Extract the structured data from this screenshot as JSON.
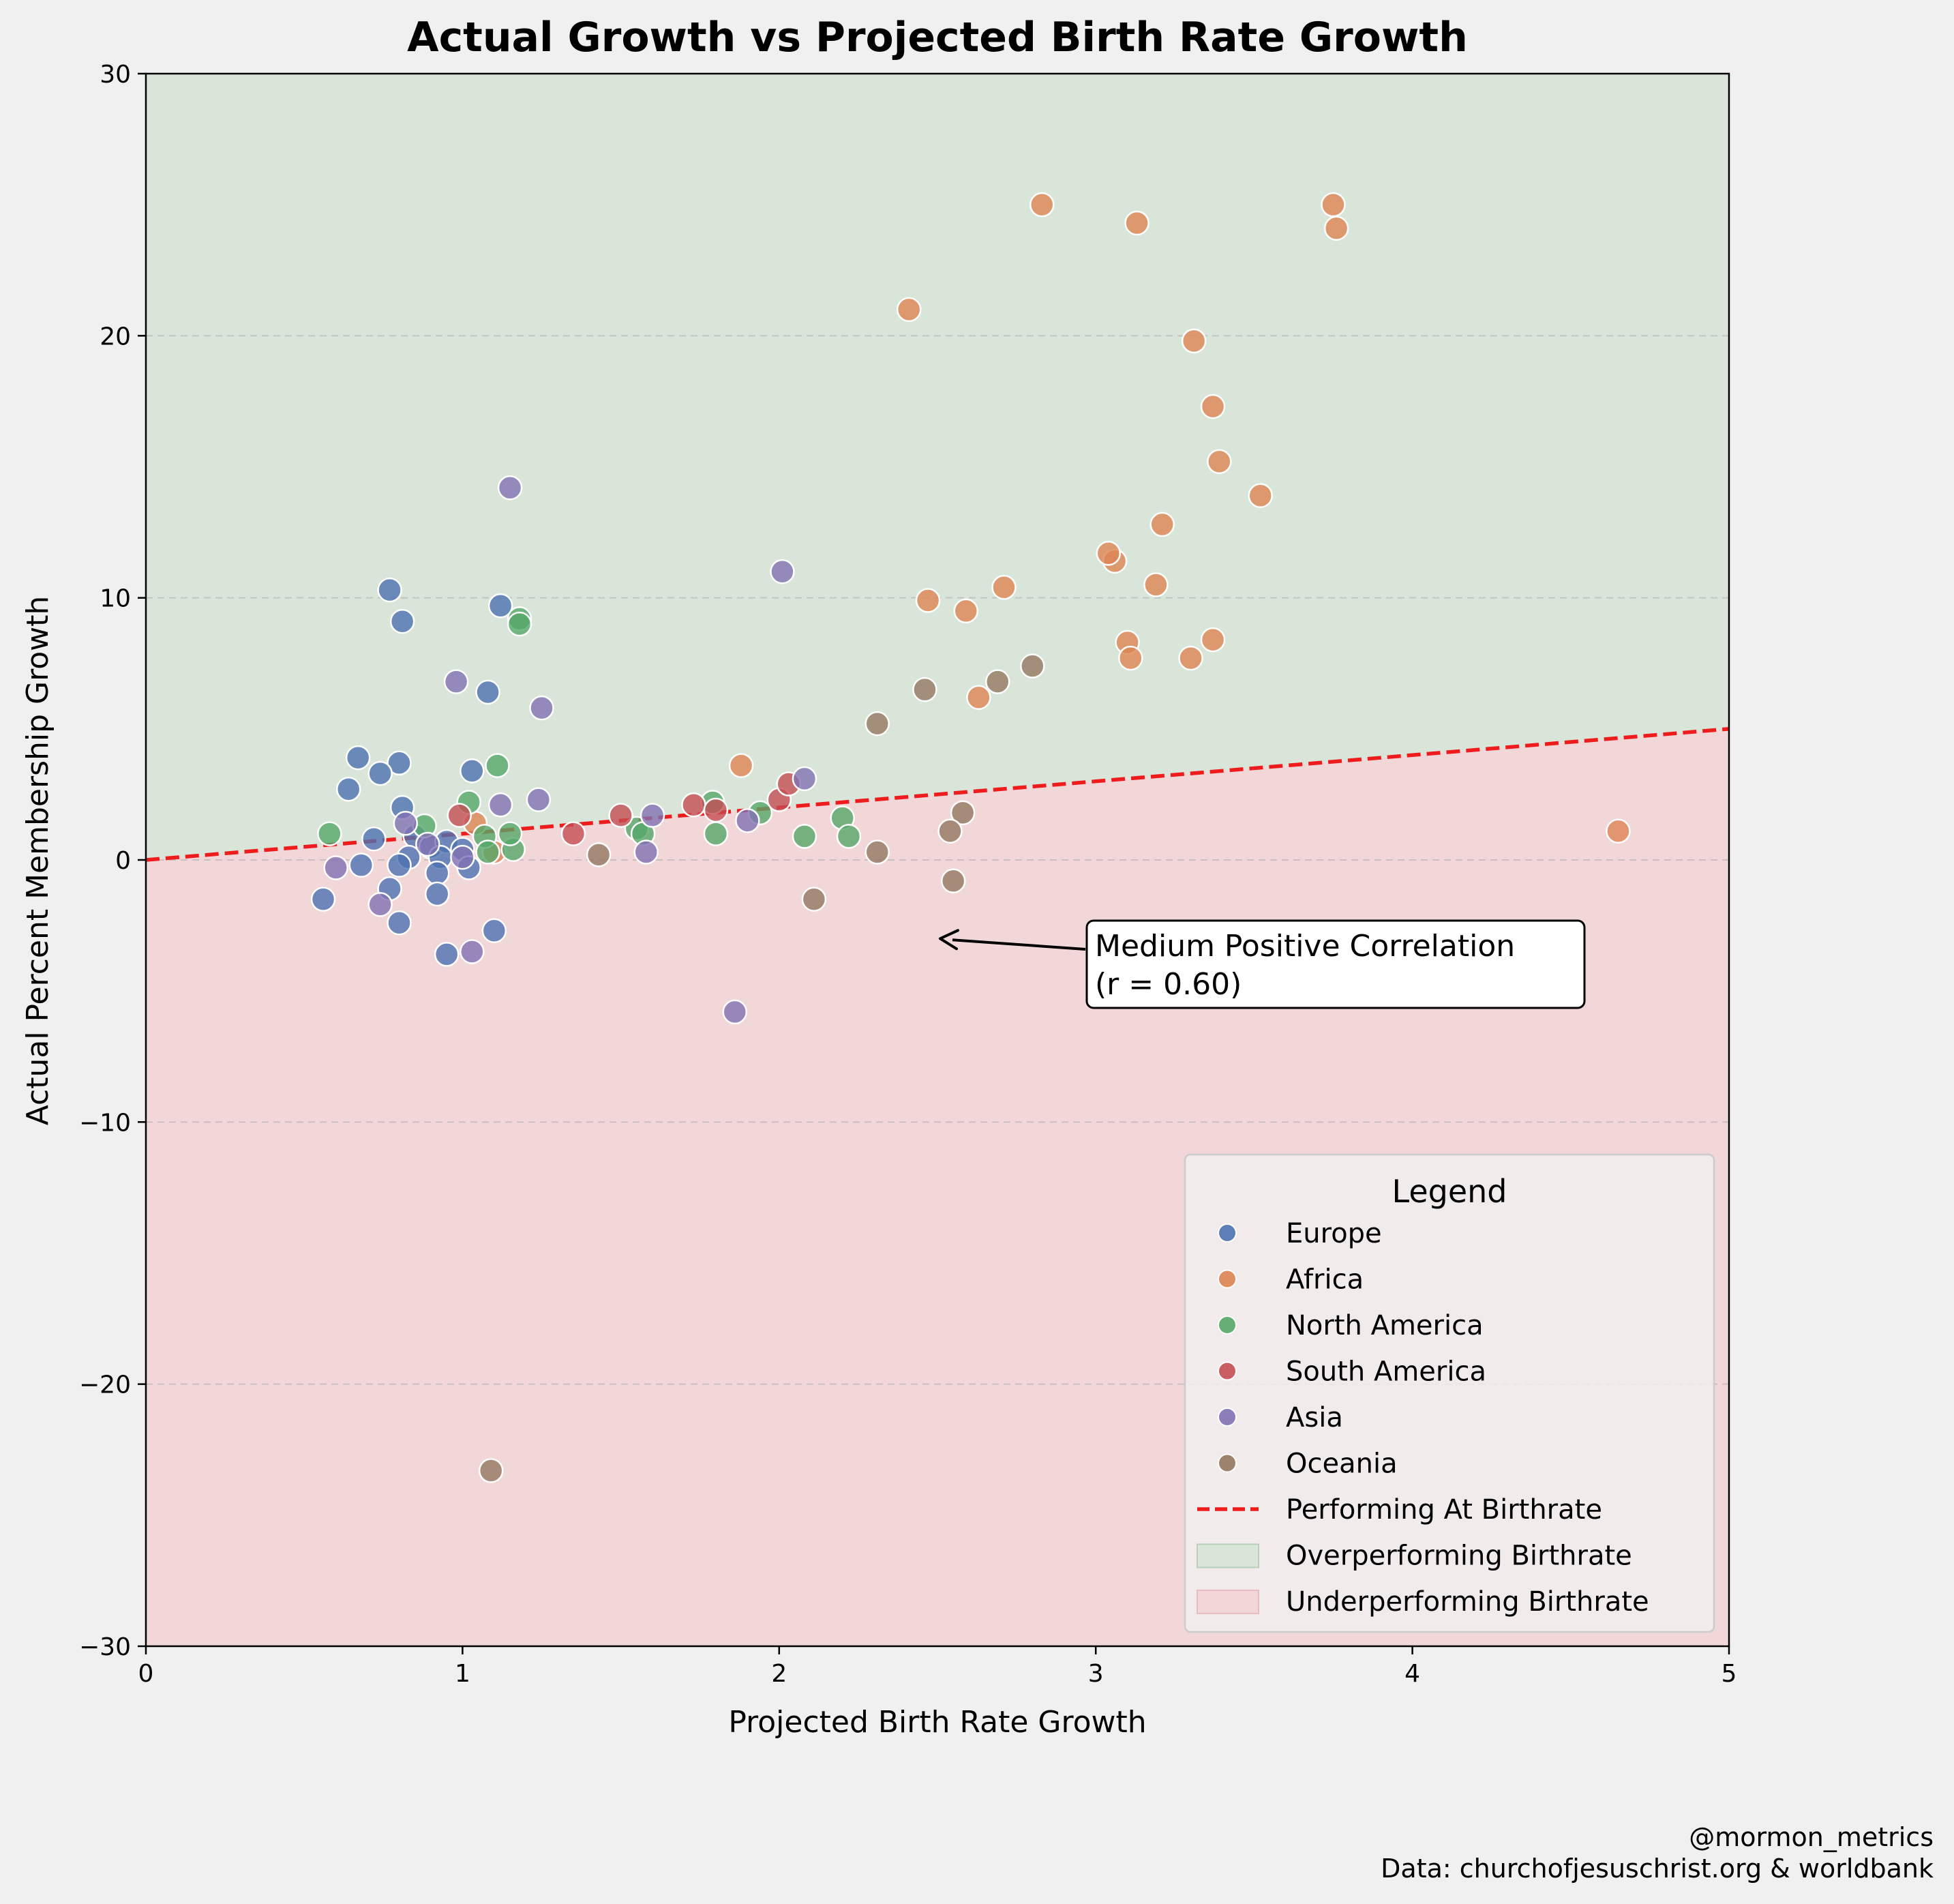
{
  "chart_data": {
    "type": "scatter",
    "title": "Actual Growth vs Projected Birth Rate Growth",
    "xlabel": "Projected Birth Rate Growth",
    "ylabel": "Actual Percent Membership Growth",
    "xlim": [
      0,
      5
    ],
    "ylim": [
      -30,
      30
    ],
    "xticks": [
      0,
      1,
      2,
      3,
      4,
      5
    ],
    "yticks": [
      -30,
      -20,
      -10,
      0,
      10,
      20,
      30
    ],
    "xtick_labels": [
      "0",
      "1",
      "2",
      "3",
      "4",
      "5"
    ],
    "ytick_labels": [
      "−30",
      "−20",
      "−10",
      "0",
      "10",
      "20",
      "30"
    ],
    "grid": "y-dashed",
    "reference_line": {
      "label": "Performing At Birthrate",
      "x": [
        0,
        5
      ],
      "y": [
        0,
        5
      ],
      "color": "#ee1c1c"
    },
    "regions": [
      {
        "label": "Overperforming Birthrate",
        "color": "#d9e5d9"
      },
      {
        "label": "Underperforming Birthrate",
        "color": "#f2d7d9"
      }
    ],
    "annotation": {
      "line1": "Medium Positive Correlation",
      "line2": "(r = 0.60)",
      "arrow_target": [
        2.5,
        -3.0
      ],
      "text_anchor": [
        3.0,
        -4.0
      ]
    },
    "legend": {
      "title": "Legend",
      "position": "lower-right"
    },
    "series": [
      {
        "name": "Europe",
        "color": "#4c72b0",
        "points": [
          [
            0.77,
            10.3
          ],
          [
            0.81,
            9.1
          ],
          [
            1.12,
            9.7
          ],
          [
            1.08,
            6.4
          ],
          [
            0.67,
            3.9
          ],
          [
            0.8,
            3.7
          ],
          [
            0.74,
            3.3
          ],
          [
            0.64,
            2.7
          ],
          [
            1.03,
            3.4
          ],
          [
            0.81,
            2.0
          ],
          [
            0.72,
            0.8
          ],
          [
            0.85,
            0.9
          ],
          [
            0.9,
            0.5
          ],
          [
            0.95,
            0.7
          ],
          [
            1.0,
            0.4
          ],
          [
            0.83,
            0.1
          ],
          [
            0.93,
            0.1
          ],
          [
            0.68,
            -0.2
          ],
          [
            0.8,
            -0.2
          ],
          [
            0.92,
            -0.5
          ],
          [
            1.02,
            -0.3
          ],
          [
            0.56,
            -1.5
          ],
          [
            0.77,
            -1.1
          ],
          [
            0.92,
            -1.3
          ],
          [
            0.8,
            -2.4
          ],
          [
            1.1,
            -2.7
          ],
          [
            0.95,
            -3.6
          ]
        ]
      },
      {
        "name": "Africa",
        "color": "#dd8452",
        "points": [
          [
            2.83,
            25.0
          ],
          [
            3.75,
            25.0
          ],
          [
            3.13,
            24.3
          ],
          [
            3.76,
            24.1
          ],
          [
            2.41,
            21.0
          ],
          [
            3.31,
            19.8
          ],
          [
            3.37,
            17.3
          ],
          [
            3.39,
            15.2
          ],
          [
            3.52,
            13.9
          ],
          [
            3.21,
            12.8
          ],
          [
            3.06,
            11.4
          ],
          [
            3.04,
            11.7
          ],
          [
            3.19,
            10.5
          ],
          [
            2.71,
            10.4
          ],
          [
            2.47,
            9.9
          ],
          [
            2.59,
            9.5
          ],
          [
            3.1,
            8.3
          ],
          [
            3.37,
            8.4
          ],
          [
            3.11,
            7.7
          ],
          [
            3.3,
            7.7
          ],
          [
            2.63,
            6.2
          ],
          [
            1.88,
            3.6
          ],
          [
            4.65,
            1.1
          ],
          [
            1.04,
            1.4
          ],
          [
            1.1,
            0.3
          ]
        ]
      },
      {
        "name": "North America",
        "color": "#55a868",
        "points": [
          [
            1.18,
            9.2
          ],
          [
            1.18,
            9.0
          ],
          [
            1.11,
            3.6
          ],
          [
            1.02,
            2.2
          ],
          [
            0.58,
            1.0
          ],
          [
            0.88,
            1.3
          ],
          [
            1.07,
            0.9
          ],
          [
            1.16,
            0.4
          ],
          [
            1.08,
            0.3
          ],
          [
            1.15,
            1.0
          ],
          [
            1.55,
            1.2
          ],
          [
            1.57,
            1.0
          ],
          [
            1.79,
            2.2
          ],
          [
            1.8,
            1.0
          ],
          [
            1.94,
            1.8
          ],
          [
            2.08,
            0.9
          ],
          [
            2.2,
            1.6
          ],
          [
            2.22,
            0.9
          ]
        ]
      },
      {
        "name": "South America",
        "color": "#c44e52",
        "points": [
          [
            0.99,
            1.7
          ],
          [
            1.35,
            1.0
          ],
          [
            1.5,
            1.7
          ],
          [
            1.73,
            2.1
          ],
          [
            1.8,
            1.9
          ],
          [
            2.0,
            2.3
          ],
          [
            2.03,
            2.9
          ]
        ]
      },
      {
        "name": "Asia",
        "color": "#8172b3",
        "points": [
          [
            1.15,
            14.2
          ],
          [
            2.01,
            11.0
          ],
          [
            0.98,
            6.8
          ],
          [
            1.25,
            5.8
          ],
          [
            2.08,
            3.1
          ],
          [
            1.12,
            2.1
          ],
          [
            1.24,
            2.3
          ],
          [
            0.82,
            1.4
          ],
          [
            0.89,
            0.6
          ],
          [
            1.0,
            0.1
          ],
          [
            1.6,
            1.7
          ],
          [
            1.58,
            0.3
          ],
          [
            1.9,
            1.5
          ],
          [
            0.6,
            -0.3
          ],
          [
            0.74,
            -1.7
          ],
          [
            1.03,
            -3.5
          ],
          [
            1.86,
            -5.8
          ]
        ]
      },
      {
        "name": "Oceania",
        "color": "#937860",
        "points": [
          [
            2.8,
            7.4
          ],
          [
            2.69,
            6.8
          ],
          [
            2.46,
            6.5
          ],
          [
            2.31,
            5.2
          ],
          [
            2.58,
            1.8
          ],
          [
            2.54,
            1.1
          ],
          [
            2.31,
            0.3
          ],
          [
            1.43,
            0.2
          ],
          [
            2.55,
            -0.8
          ],
          [
            2.11,
            -1.5
          ],
          [
            1.09,
            -23.3
          ]
        ]
      }
    ]
  },
  "credit": {
    "handle": "@mormon_metrics",
    "source": "Data: churchofjesuschrist.org & worldbank"
  }
}
